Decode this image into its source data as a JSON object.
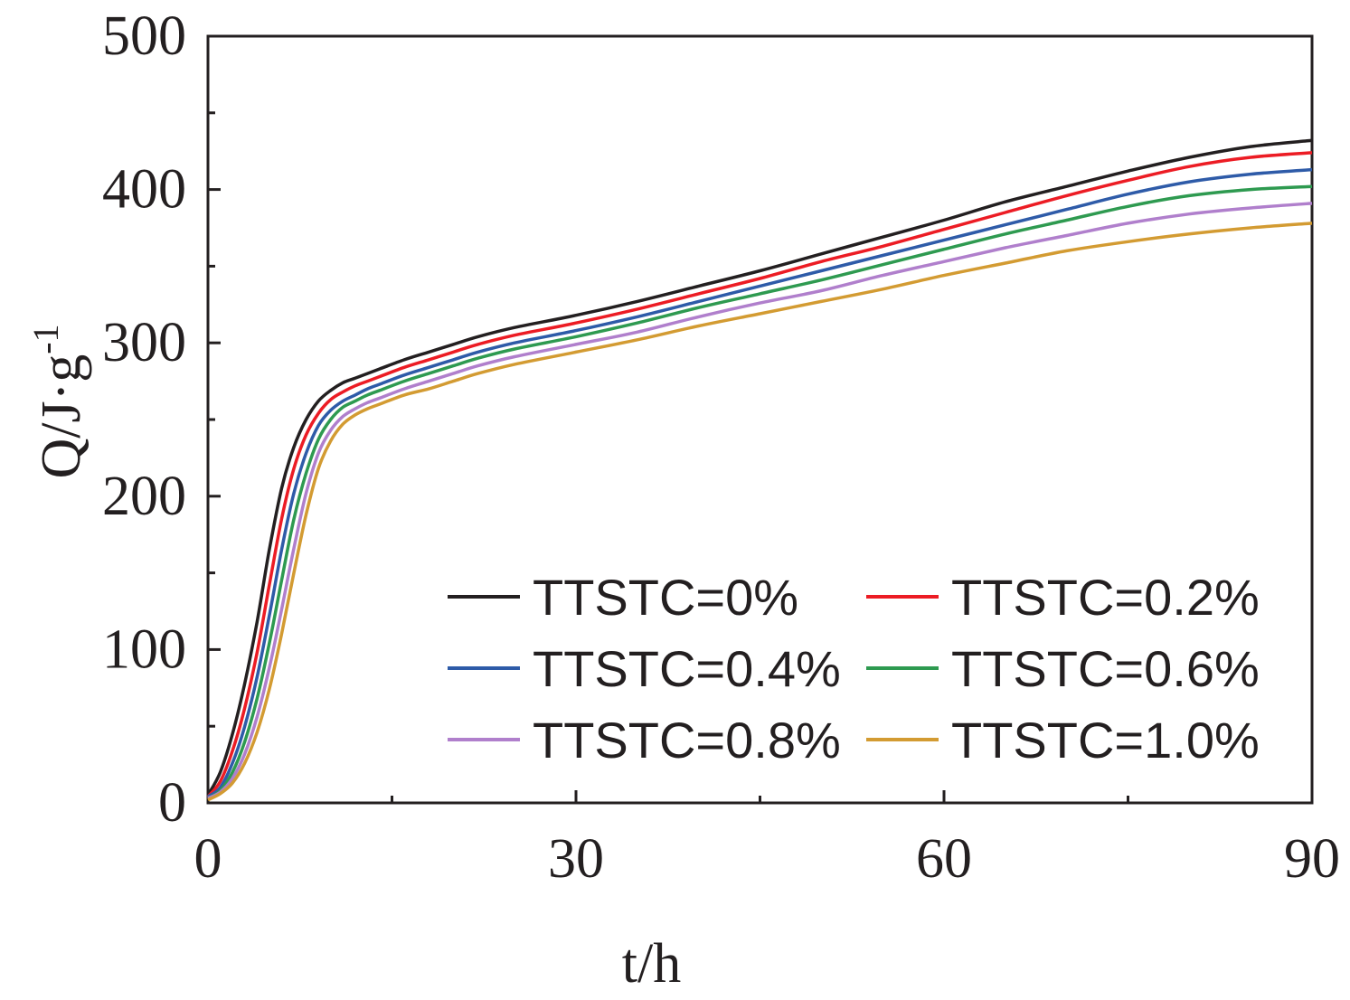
{
  "chart_data": {
    "type": "line",
    "xlabel": "t/h",
    "ylabel": "Q/J·g",
    "ylabel_superscript": "-1",
    "xlim": [
      0,
      90
    ],
    "ylim": [
      0,
      500
    ],
    "xticks": [
      0,
      30,
      60,
      90
    ],
    "xtick_labels": [
      "0",
      "30",
      "60",
      "90"
    ],
    "xminor": [
      15,
      45,
      75
    ],
    "yticks": [
      0,
      100,
      200,
      300,
      400,
      500
    ],
    "ytick_labels": [
      "0",
      "100",
      "200",
      "300",
      "400",
      "500"
    ],
    "yminor": [
      50,
      150,
      250,
      350,
      450
    ],
    "grid": false,
    "legend_position": "lower-right",
    "x": [
      0,
      1,
      2,
      3,
      4,
      5,
      6,
      7,
      8,
      9,
      10,
      11,
      12,
      13,
      14,
      16,
      18,
      20,
      22,
      25,
      30,
      35,
      40,
      45,
      50,
      55,
      60,
      65,
      70,
      75,
      80,
      85,
      90
    ],
    "series": [
      {
        "name": "TTSTC=0%",
        "color": "#231f20",
        "values": [
          5,
          20,
          45,
          78,
          118,
          165,
          205,
          232,
          250,
          262,
          269,
          274,
          277,
          280,
          283,
          289,
          294,
          299,
          304,
          310,
          318,
          327,
          337,
          347,
          358,
          369,
          380,
          392,
          402,
          412,
          421,
          428,
          432
        ]
      },
      {
        "name": "TTSTC=0.2%",
        "color": "#ec1c24",
        "values": [
          4,
          14,
          34,
          62,
          98,
          142,
          185,
          218,
          240,
          254,
          263,
          268,
          272,
          275,
          278,
          284,
          289,
          294,
          299,
          305,
          313,
          322,
          332,
          342,
          353,
          363,
          374,
          385,
          396,
          406,
          415,
          421,
          424
        ]
      },
      {
        "name": "TTSTC=0.4%",
        "color": "#2e5ba8",
        "values": [
          4,
          10,
          26,
          50,
          82,
          122,
          165,
          202,
          228,
          246,
          256,
          262,
          266,
          270,
          273,
          279,
          284,
          289,
          294,
          300,
          308,
          317,
          327,
          337,
          347,
          357,
          367,
          377,
          387,
          397,
          405,
          410,
          413
        ]
      },
      {
        "name": "TTSTC=0.6%",
        "color": "#2e9a50",
        "values": [
          3,
          8,
          20,
          40,
          68,
          104,
          145,
          185,
          215,
          237,
          250,
          258,
          262,
          266,
          269,
          275,
          280,
          285,
          290,
          296,
          304,
          313,
          323,
          332,
          341,
          351,
          361,
          371,
          380,
          389,
          396,
          400,
          402
        ]
      },
      {
        "name": "TTSTC=0.8%",
        "color": "#b07fcc",
        "values": [
          3,
          7,
          16,
          32,
          56,
          88,
          126,
          166,
          202,
          228,
          243,
          252,
          257,
          261,
          264,
          270,
          275,
          280,
          285,
          291,
          299,
          307,
          317,
          326,
          334,
          344,
          353,
          362,
          370,
          378,
          384,
          388,
          391
        ]
      },
      {
        "name": "TTSTC=1.0%",
        "color": "#d39b32",
        "values": [
          2,
          6,
          13,
          26,
          46,
          74,
          110,
          150,
          188,
          218,
          236,
          247,
          253,
          257,
          260,
          266,
          270,
          275,
          280,
          286,
          294,
          302,
          311,
          319,
          327,
          335,
          344,
          352,
          360,
          366,
          371,
          375,
          378
        ]
      }
    ]
  }
}
